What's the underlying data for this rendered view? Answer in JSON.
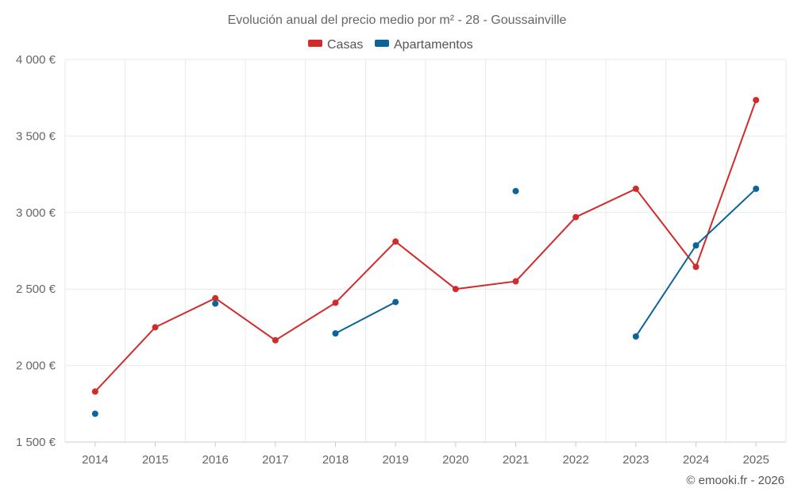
{
  "chart_data": {
    "type": "line",
    "title": "Evolución anual del precio medio por m² - 28 - Goussainville",
    "categories": [
      "2014",
      "2015",
      "2016",
      "2017",
      "2018",
      "2019",
      "2020",
      "2021",
      "2022",
      "2023",
      "2024",
      "2025"
    ],
    "ylim": [
      1500,
      4000
    ],
    "yticks": [
      1500,
      2000,
      2500,
      3000,
      3500,
      4000
    ],
    "ytick_labels": [
      "1 500 €",
      "2 000 €",
      "2 500 €",
      "3 000 €",
      "3 500 €",
      "4 000 €"
    ],
    "grid": true,
    "legend_position": "top-center",
    "series": [
      {
        "name": "Casas",
        "color": "#d12b2b",
        "values": [
          1830,
          2250,
          2440,
          2165,
          2410,
          2810,
          2500,
          2550,
          2970,
          3155,
          2645,
          3735
        ]
      },
      {
        "name": "Apartamentos",
        "color": "#0d6496",
        "values": [
          1685,
          null,
          2405,
          null,
          2210,
          2415,
          null,
          3140,
          null,
          2190,
          2785,
          3155
        ]
      }
    ]
  },
  "footer": {
    "credit": "© emooki.fr - 2026"
  }
}
